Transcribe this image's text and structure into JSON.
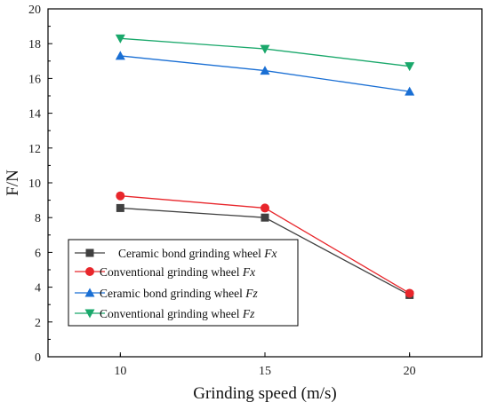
{
  "chart_data": {
    "type": "line",
    "title": "",
    "xlabel": "Grinding speed (m/s)",
    "ylabel": "F/N",
    "xlim": [
      7.5,
      22.5
    ],
    "ylim": [
      0,
      20
    ],
    "x_ticks": [
      10,
      15,
      20
    ],
    "y_ticks": [
      0,
      2,
      4,
      6,
      8,
      10,
      12,
      14,
      16,
      18,
      20
    ],
    "grid": false,
    "legend_position": "bottom-left",
    "x": [
      10,
      15,
      20
    ],
    "series": [
      {
        "name_prefix": "Ceramic bond grinding wheel ",
        "name_italic": "Fx",
        "values": [
          8.55,
          8.0,
          3.55
        ],
        "color": "#404040",
        "marker": "square"
      },
      {
        "name_prefix": "Conventional grinding wheel ",
        "name_italic": "Fx",
        "values": [
          9.25,
          8.55,
          3.65
        ],
        "color": "#e8262b",
        "marker": "circle"
      },
      {
        "name_prefix": "Ceramic bond grinding wheel ",
        "name_italic": "Fz",
        "values": [
          17.3,
          16.45,
          15.25
        ],
        "color": "#1a6fd4",
        "marker": "triangle-up"
      },
      {
        "name_prefix": "Conventional grinding wheel ",
        "name_italic": "Fz",
        "values": [
          18.3,
          17.7,
          16.7
        ],
        "color": "#1aa86b",
        "marker": "triangle-down"
      }
    ]
  }
}
